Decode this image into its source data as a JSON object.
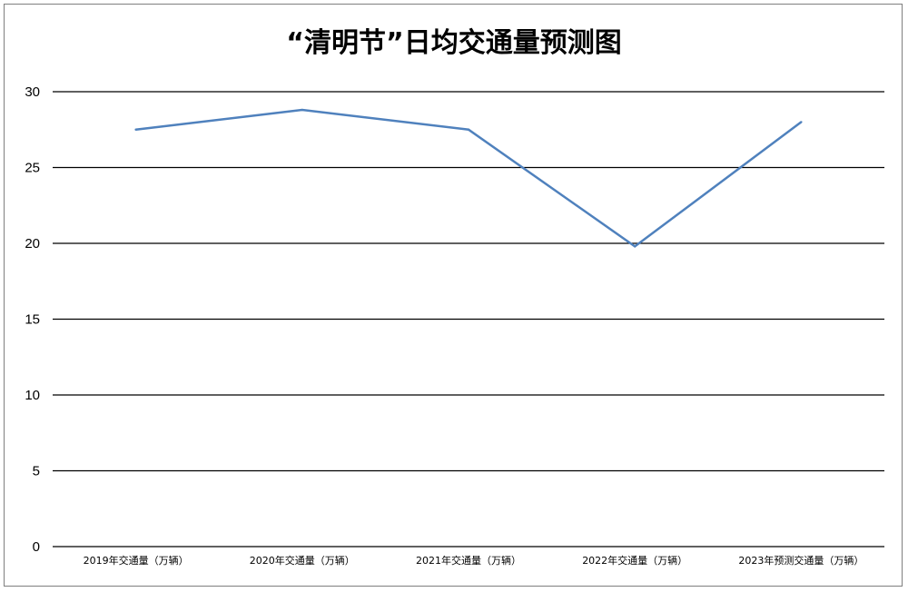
{
  "chart_data": {
    "type": "line",
    "title": "“清明节”日均交通量预测图",
    "xlabel": "",
    "ylabel": "",
    "categories": [
      "2019年交通量（万辆）",
      "2020年交通量（万辆）",
      "2021年交通量（万辆）",
      "2022年交通量（万辆）",
      "2023年预测交通量（万辆）"
    ],
    "series": [
      {
        "values": [
          27.5,
          28.8,
          27.5,
          19.8,
          28.0
        ]
      }
    ],
    "ylim": [
      0,
      30
    ],
    "yticks": [
      0,
      5,
      10,
      15,
      20,
      25,
      30
    ],
    "grid": true,
    "legend": "none",
    "colors": {
      "line": "#4f81bd",
      "grid": "#000000"
    }
  }
}
